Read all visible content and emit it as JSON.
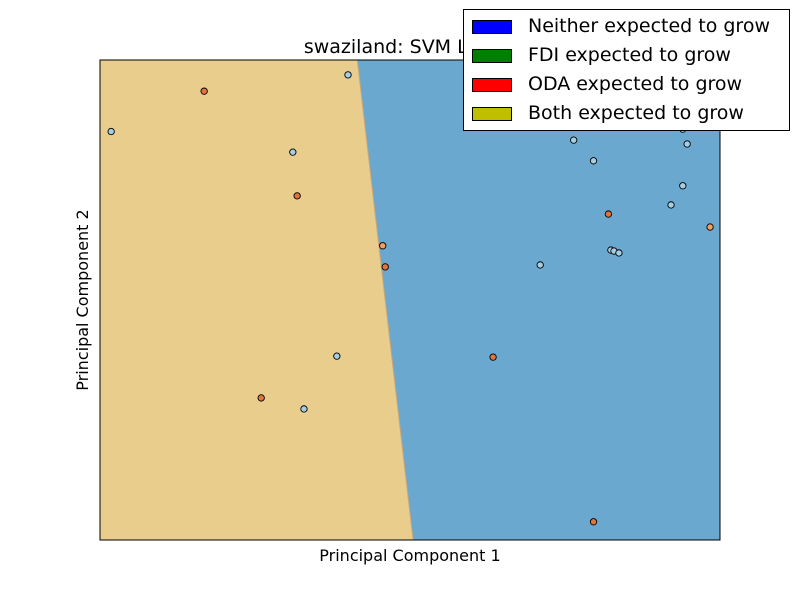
{
  "chart_data": {
    "type": "scatter",
    "title": "swaziland: SVM Linear",
    "xlabel": "Principal Component 1",
    "ylabel": "Principal Component 2",
    "xlim": [
      0,
      100
    ],
    "ylim": [
      0,
      100
    ],
    "show_ticks": false,
    "grid": false,
    "legend_position": "top-right",
    "decision_boundary": {
      "points": [
        [
          41.5,
          100
        ],
        [
          50.5,
          0
        ]
      ],
      "left_region": "Both expected to grow",
      "right_region": "Neither expected to grow",
      "left_color": "#e8cd8c",
      "right_color": "#6ba8cf"
    },
    "legend": [
      {
        "label": "Neither expected to grow",
        "color": "#0000ff"
      },
      {
        "label": "FDI expected to grow",
        "color": "#008000"
      },
      {
        "label": "ODA expected to grow",
        "color": "#ff0000"
      },
      {
        "label": "Both expected to grow",
        "color": "#bfbf00"
      }
    ],
    "class_point_colors": {
      "Neither expected to grow": "#a6cee3",
      "ODA expected to grow": "#e0743c",
      "Both expected to grow": "#f0a060"
    },
    "points": [
      {
        "x": 1.8,
        "y": 85.1,
        "class": "Neither expected to grow"
      },
      {
        "x": 16.8,
        "y": 93.5,
        "class": "ODA expected to grow"
      },
      {
        "x": 31.1,
        "y": 80.8,
        "class": "Neither expected to grow"
      },
      {
        "x": 31.8,
        "y": 71.7,
        "class": "ODA expected to grow"
      },
      {
        "x": 40.0,
        "y": 96.9,
        "class": "Neither expected to grow"
      },
      {
        "x": 45.6,
        "y": 61.3,
        "class": "Both expected to grow"
      },
      {
        "x": 46.0,
        "y": 56.9,
        "class": "ODA expected to grow"
      },
      {
        "x": 38.2,
        "y": 38.3,
        "class": "Neither expected to grow"
      },
      {
        "x": 26.0,
        "y": 29.6,
        "class": "ODA expected to grow"
      },
      {
        "x": 32.9,
        "y": 27.3,
        "class": "Neither expected to grow"
      },
      {
        "x": 63.4,
        "y": 38.1,
        "class": "ODA expected to grow"
      },
      {
        "x": 71.0,
        "y": 57.3,
        "class": "Neither expected to grow"
      },
      {
        "x": 76.4,
        "y": 83.3,
        "class": "Neither expected to grow"
      },
      {
        "x": 79.6,
        "y": 79.0,
        "class": "Neither expected to grow"
      },
      {
        "x": 82.0,
        "y": 67.9,
        "class": "ODA expected to grow"
      },
      {
        "x": 82.4,
        "y": 60.4,
        "class": "Neither expected to grow"
      },
      {
        "x": 82.9,
        "y": 60.2,
        "class": "Neither expected to grow"
      },
      {
        "x": 83.7,
        "y": 59.8,
        "class": "Neither expected to grow"
      },
      {
        "x": 92.1,
        "y": 69.8,
        "class": "Neither expected to grow"
      },
      {
        "x": 94.0,
        "y": 73.8,
        "class": "Neither expected to grow"
      },
      {
        "x": 94.7,
        "y": 82.5,
        "class": "Neither expected to grow"
      },
      {
        "x": 94.0,
        "y": 85.6,
        "class": "Neither expected to grow"
      },
      {
        "x": 98.4,
        "y": 65.2,
        "class": "Both expected to grow"
      },
      {
        "x": 79.6,
        "y": 3.8,
        "class": "ODA expected to grow"
      }
    ]
  }
}
